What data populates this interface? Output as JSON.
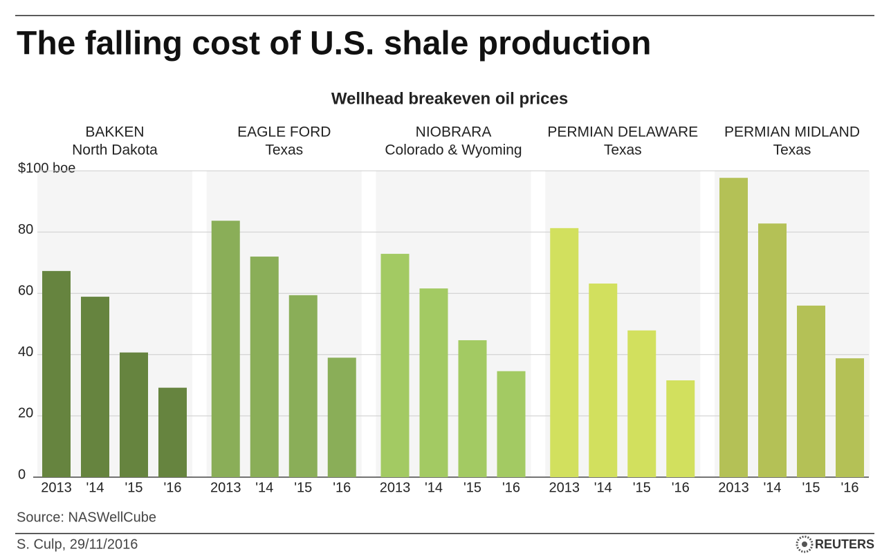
{
  "title": "The falling cost of U.S. shale production",
  "chart_data": {
    "type": "bar",
    "subtitle": "Wellhead breakeven oil prices",
    "categories": [
      "2013",
      "'14",
      "'15",
      "'16"
    ],
    "ylim": [
      0,
      100
    ],
    "yticks": [
      0,
      20,
      40,
      60,
      80,
      {
        "value": 100,
        "label": "$100 boe"
      }
    ],
    "grid": true,
    "panels": [
      {
        "name": "BAKKEN",
        "region": "North Dakota",
        "color": "#66843f",
        "values": [
          67.3,
          58.9,
          40.7,
          29.2
        ]
      },
      {
        "name": "EAGLE FORD",
        "region": "Texas",
        "color": "#8aae58",
        "values": [
          83.7,
          72,
          59.4,
          39
        ]
      },
      {
        "name": "NIOBRARA",
        "region": "Colorado & Wyoming",
        "color": "#a3ca63",
        "values": [
          72.9,
          61.6,
          44.7,
          34.6
        ]
      },
      {
        "name": "PERMIAN DELAWARE",
        "region": "Texas",
        "color": "#d2e05e",
        "values": [
          81.3,
          63.2,
          47.9,
          31.6
        ]
      },
      {
        "name": "PERMIAN MIDLAND",
        "region": "Texas",
        "color": "#b4c156",
        "values": [
          97.7,
          82.8,
          56,
          38.8
        ]
      }
    ]
  },
  "source": "Source:  NASWellCube",
  "credit": "S. Culp,  29/11/2016",
  "logo": "REUTERS"
}
